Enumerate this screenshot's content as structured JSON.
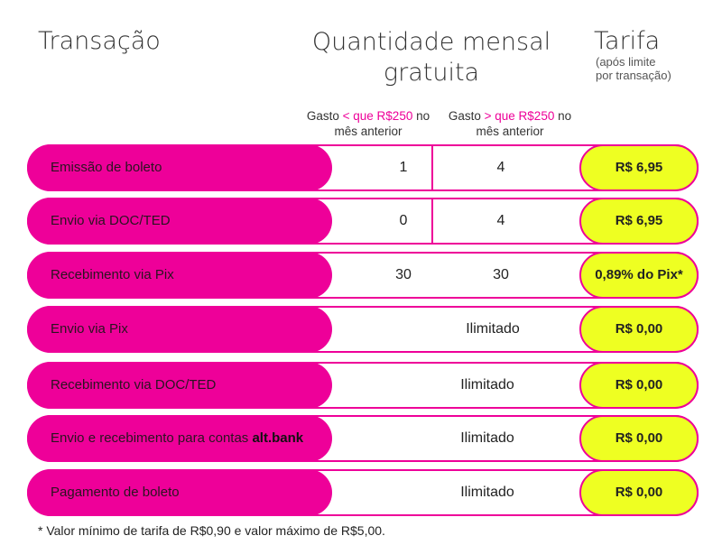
{
  "header": {
    "transacao": "Transação",
    "quantidade_line1": "Quantidade mensal",
    "quantidade_line2": "gratuita",
    "tarifa": "Tarifa",
    "tarifa_sub1": "(após limite",
    "tarifa_sub2": "por transação)"
  },
  "subheaders": {
    "col1": {
      "prefix": "Gasto",
      "highlight": "< que R$250",
      "suffix": "no",
      "line2": "mês anterior"
    },
    "col2": {
      "prefix": "Gasto",
      "highlight": "> que R$250",
      "suffix": "no",
      "line2": "mês anterior"
    }
  },
  "rows": [
    {
      "label": "Emissão de boleto",
      "q1": "1",
      "q2": "4",
      "fee": "R$ 6,95"
    },
    {
      "label": "Envio via DOC/TED",
      "q1": "0",
      "q2": "4",
      "fee": "R$ 6,95"
    },
    {
      "label": "Recebimento via Pix",
      "q1": "30",
      "q2": "30",
      "fee": "0,89% do Pix*"
    },
    {
      "label": "Envio via Pix",
      "qty": "Ilimitado",
      "fee": "R$ 0,00"
    },
    {
      "label": "Recebimento via DOC/TED",
      "qty": "Ilimitado",
      "fee": "R$ 0,00"
    },
    {
      "label": "Envio e recebimento para contas",
      "label_bold": "alt.bank",
      "qty": "Ilimitado",
      "fee": "R$ 0,00"
    },
    {
      "label": "Pagamento de boleto",
      "qty": "Ilimitado",
      "fee": "R$ 0,00"
    }
  ],
  "footnote": "* Valor mínimo de tarifa de R$0,90 e valor máximo de R$5,00.",
  "colors": {
    "pink": "#ee0099",
    "yellow": "#eeff22"
  }
}
